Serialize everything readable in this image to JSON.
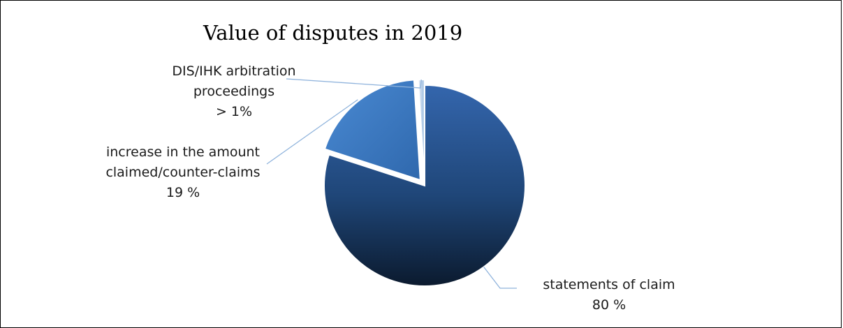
{
  "chart_data": {
    "type": "pie",
    "title": "Value of disputes in 2019",
    "slices": [
      {
        "name": "statements of claim",
        "value": 80,
        "value_label": "80 %",
        "color": "#2a5592"
      },
      {
        "name": "increase in the amount claimed/counter-claims",
        "name_lines": [
          "increase in the amount",
          "claimed/counter-claims"
        ],
        "value": 19,
        "value_label": "19 %",
        "color": "#3a78c2"
      },
      {
        "name": "DIS/IHK arbitration proceedings",
        "name_lines": [
          "DIS/IHK arbitration",
          "proceedings"
        ],
        "value": 1,
        "value_label": "> 1%",
        "color": "#7aaee0"
      }
    ],
    "legend": "none",
    "label_position": "outside-with-leader-lines"
  }
}
